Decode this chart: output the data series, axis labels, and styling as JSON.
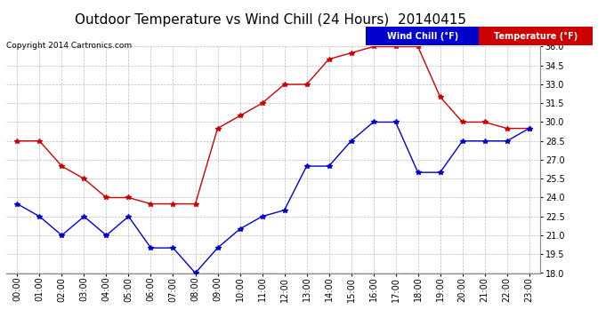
{
  "title": "Outdoor Temperature vs Wind Chill (24 Hours)  20140415",
  "copyright": "Copyright 2014 Cartronics.com",
  "hours": [
    "00:00",
    "01:00",
    "02:00",
    "03:00",
    "04:00",
    "05:00",
    "06:00",
    "07:00",
    "08:00",
    "09:00",
    "10:00",
    "11:00",
    "12:00",
    "13:00",
    "14:00",
    "15:00",
    "16:00",
    "17:00",
    "18:00",
    "19:00",
    "20:00",
    "21:00",
    "22:00",
    "23:00"
  ],
  "temperature": [
    28.5,
    28.5,
    26.5,
    25.5,
    24.0,
    24.0,
    23.5,
    23.5,
    23.5,
    29.5,
    30.5,
    31.5,
    33.0,
    33.0,
    35.0,
    35.5,
    36.0,
    36.0,
    36.0,
    32.0,
    30.0,
    30.0,
    29.5,
    29.5
  ],
  "wind_chill": [
    23.5,
    22.5,
    21.0,
    22.5,
    21.0,
    22.5,
    20.0,
    20.0,
    18.0,
    20.0,
    21.5,
    22.5,
    23.0,
    26.5,
    26.5,
    28.5,
    30.0,
    30.0,
    26.0,
    26.0,
    28.5,
    28.5,
    28.5,
    29.5
  ],
  "temp_color": "#cc0000",
  "wind_color": "#0000cc",
  "ylim_min": 18.0,
  "ylim_max": 36.0,
  "yticks": [
    18.0,
    19.5,
    21.0,
    22.5,
    24.0,
    25.5,
    27.0,
    28.5,
    30.0,
    31.5,
    33.0,
    34.5,
    36.0
  ],
  "background_color": "#ffffff",
  "plot_bg_color": "#ffffff",
  "grid_color": "#bbbbbb",
  "title_fontsize": 11,
  "copyright_fontsize": 6.5,
  "tick_fontsize": 7,
  "legend_wind_bg": "#0000cc",
  "legend_temp_bg": "#cc0000",
  "legend_text_color": "#ffffff",
  "legend_fontsize": 7
}
